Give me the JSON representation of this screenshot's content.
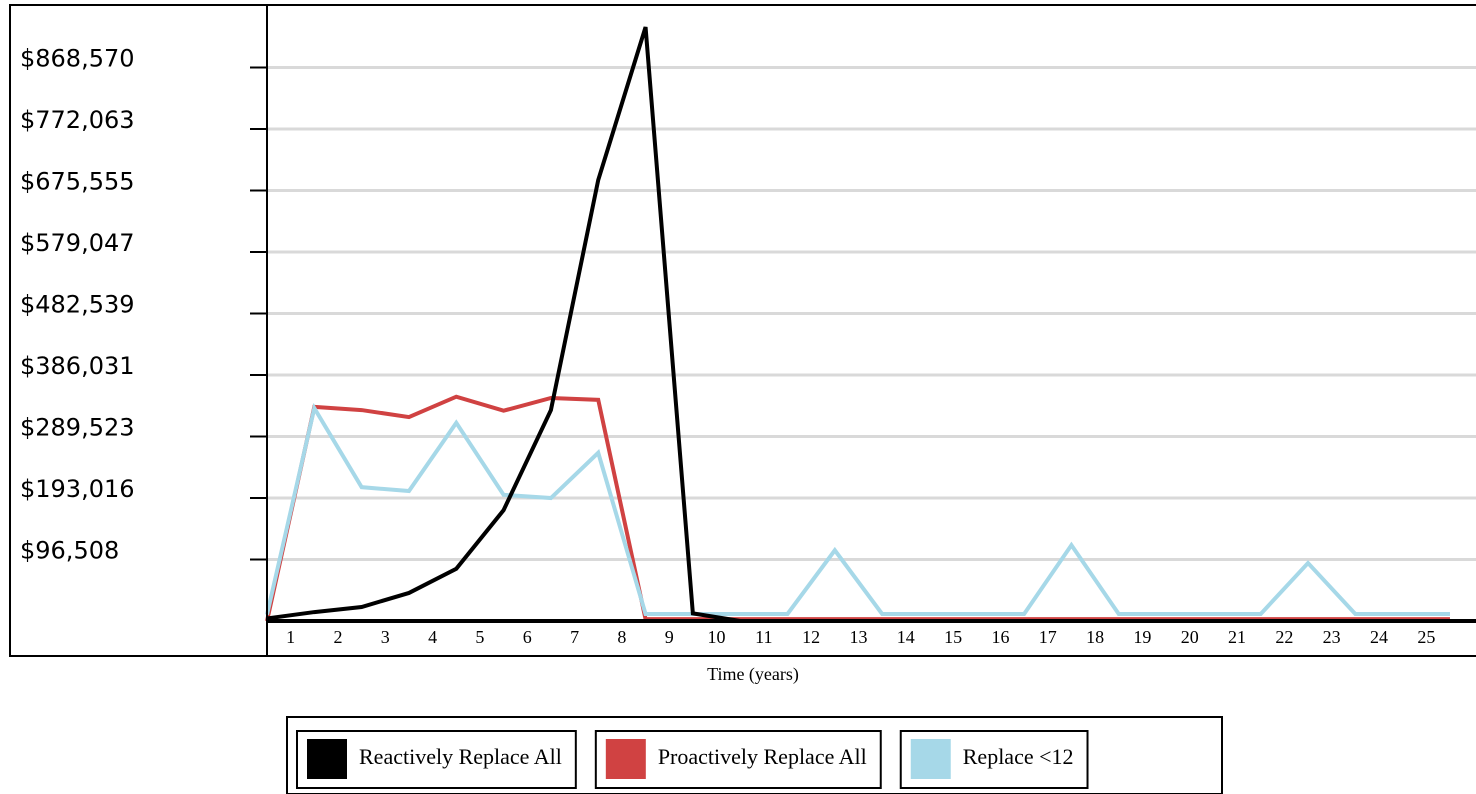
{
  "chart_data": {
    "type": "line",
    "x_label": "Time (years)",
    "x": [
      0,
      1,
      2,
      3,
      4,
      5,
      6,
      7,
      8,
      9,
      10,
      11,
      12,
      13,
      14,
      15,
      16,
      17,
      18,
      19,
      20,
      21,
      22,
      23,
      24,
      25
    ],
    "xlim": [
      0,
      25.55
    ],
    "xticks": [
      {
        "value": 0.5,
        "label": "1"
      },
      {
        "value": 1.5,
        "label": "2"
      },
      {
        "value": 2.5,
        "label": "3"
      },
      {
        "value": 3.5,
        "label": "4"
      },
      {
        "value": 4.5,
        "label": "5"
      },
      {
        "value": 5.5,
        "label": "6"
      },
      {
        "value": 6.5,
        "label": "7"
      },
      {
        "value": 7.5,
        "label": "8"
      },
      {
        "value": 8.5,
        "label": "9"
      },
      {
        "value": 9.5,
        "label": "10"
      },
      {
        "value": 10.5,
        "label": "11"
      },
      {
        "value": 11.5,
        "label": "12"
      },
      {
        "value": 12.5,
        "label": "13"
      },
      {
        "value": 13.5,
        "label": "14"
      },
      {
        "value": 14.5,
        "label": "15"
      },
      {
        "value": 15.5,
        "label": "16"
      },
      {
        "value": 16.5,
        "label": "17"
      },
      {
        "value": 17.5,
        "label": "18"
      },
      {
        "value": 18.5,
        "label": "19"
      },
      {
        "value": 19.5,
        "label": "20"
      },
      {
        "value": 20.5,
        "label": "21"
      },
      {
        "value": 21.5,
        "label": "22"
      },
      {
        "value": 22.5,
        "label": "23"
      },
      {
        "value": 23.5,
        "label": "24"
      },
      {
        "value": 24.5,
        "label": "25"
      }
    ],
    "ylim": [
      0,
      965078
    ],
    "yticks": [
      {
        "value": 96508,
        "label": "$96,508"
      },
      {
        "value": 193016,
        "label": "$193,016"
      },
      {
        "value": 289523,
        "label": "$289,523"
      },
      {
        "value": 386031,
        "label": "$386,031"
      },
      {
        "value": 482539,
        "label": "$482,539"
      },
      {
        "value": 579047,
        "label": "$579,047"
      },
      {
        "value": 675555,
        "label": "$675,555"
      },
      {
        "value": 772063,
        "label": "$772,063"
      },
      {
        "value": 868570,
        "label": "$868,570"
      }
    ],
    "grid": true,
    "series": [
      {
        "name": "Reactively Replace All",
        "color": "#000000",
        "values": [
          4000,
          14000,
          22000,
          44000,
          82000,
          174000,
          331000,
          692000,
          932000,
          12000,
          0,
          0,
          0,
          0,
          0,
          0,
          0,
          0,
          0,
          0,
          0,
          0,
          0,
          0,
          0,
          0
        ]
      },
      {
        "name": "Proactively Replace All",
        "color": "#d04242",
        "values": [
          0,
          336000,
          331000,
          320000,
          352000,
          330000,
          350000,
          347000,
          3000,
          3000,
          3000,
          3000,
          3000,
          3000,
          3000,
          3000,
          3000,
          3000,
          3000,
          3000,
          3000,
          3000,
          3000,
          3000,
          3000,
          3000
        ]
      },
      {
        "name": "Replace <12",
        "color": "#a6d8e8",
        "values": [
          10000,
          334000,
          210000,
          204000,
          311000,
          198000,
          193000,
          264000,
          11000,
          11000,
          11000,
          11000,
          111000,
          11000,
          11000,
          11000,
          11000,
          119000,
          11000,
          11000,
          11000,
          11000,
          91000,
          11000,
          11000,
          11000
        ]
      }
    ]
  }
}
